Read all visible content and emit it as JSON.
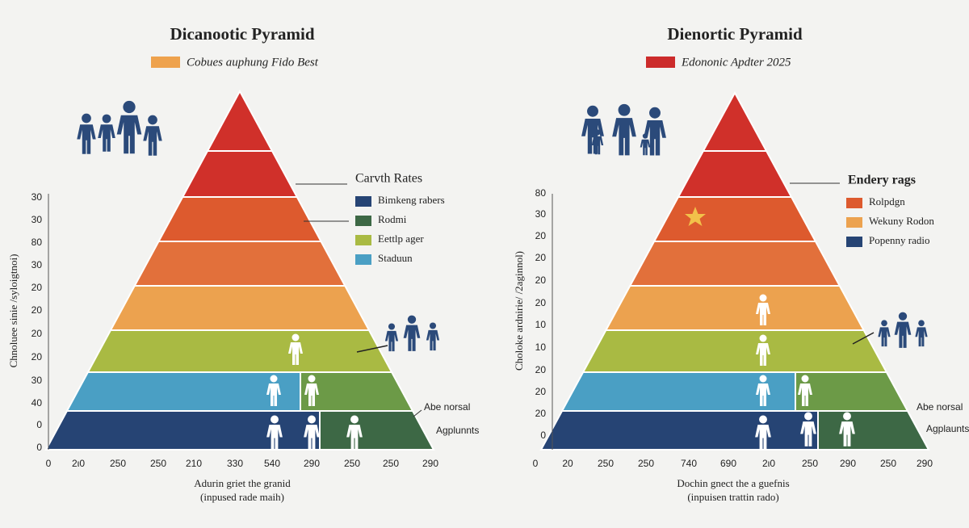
{
  "left": {
    "title": "Dicanootic Pyramid",
    "subtitle": "Cobues auphung Fido Best",
    "legend_title": "Carvth Rates",
    "legend": [
      "Bimkeng rabers",
      "Rodmi",
      "Eettlp ager",
      "Staduun"
    ],
    "y_label": "Chnoluee sinie /syloigtnoi)",
    "y_ticks": [
      "30",
      "30",
      "80",
      "30",
      "20",
      "20",
      "20",
      "20",
      "30",
      "40",
      "0",
      "0"
    ],
    "x_ticks": [
      "0",
      "2ι0",
      "250",
      "250",
      "210",
      "330",
      "540",
      "290",
      "250",
      "250",
      "290"
    ],
    "x_label": [
      "Adurin griet the granid",
      "(inpused rade maih)"
    ],
    "notes": [
      "Abe norsal",
      "Agplunnts"
    ]
  },
  "right": {
    "title": "Dienortic Pyramid",
    "subtitle": "Edononic Apdter 2025",
    "legend_title": "Endery rags",
    "legend": [
      "Rolpdgn",
      "Wekuny Rodon",
      "Popenny radio"
    ],
    "y_label": "Choloke ardnirie/ /2aginnol)",
    "y_ticks": [
      "80",
      "30",
      "20",
      "20",
      "20",
      "20",
      "10",
      "10",
      "20",
      "20",
      "20",
      "0"
    ],
    "x_ticks": [
      "0",
      "20",
      "250",
      "250",
      "740",
      "690",
      "2ι0",
      "250",
      "290",
      "250",
      "290"
    ],
    "x_label": [
      "Dochin gnect the a guefnis",
      "(inpuisen trattin rado)"
    ],
    "notes": [
      "Abe norsal",
      "Agplaunts"
    ]
  }
}
